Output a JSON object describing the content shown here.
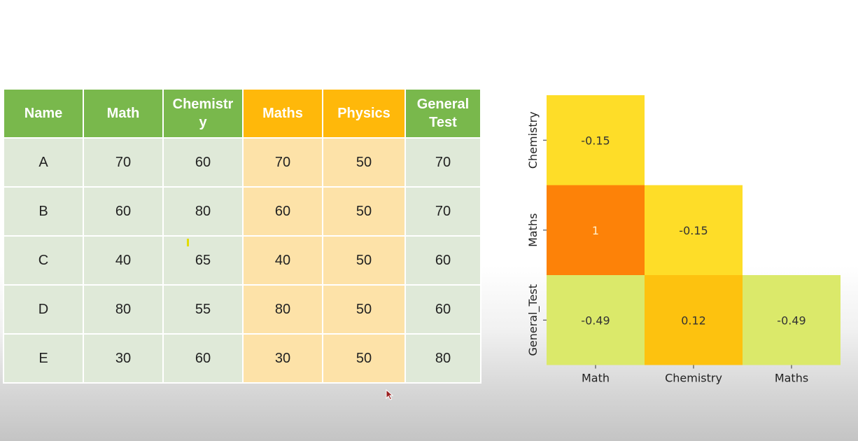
{
  "table": {
    "headers": [
      {
        "label": "Name",
        "style": "green"
      },
      {
        "label": "Math",
        "style": "green"
      },
      {
        "label": "Chemistry",
        "style": "green"
      },
      {
        "label": "Maths",
        "style": "orange"
      },
      {
        "label": "Physics",
        "style": "orange"
      },
      {
        "label": "General Test",
        "style": "green"
      }
    ],
    "rows": [
      [
        "A",
        "70",
        "60",
        "70",
        "50",
        "70"
      ],
      [
        "B",
        "60",
        "80",
        "60",
        "50",
        "70"
      ],
      [
        "C",
        "40",
        "65",
        "40",
        "50",
        "60"
      ],
      [
        "D",
        "80",
        "55",
        "80",
        "50",
        "60"
      ],
      [
        "E",
        "30",
        "60",
        "30",
        "50",
        "80"
      ]
    ],
    "colors": {
      "header_green": "#79b84c",
      "header_orange": "#ffb80a",
      "cell_green": "#dfe9d8",
      "cell_orange": "#fde2a8"
    }
  },
  "chart_data": {
    "type": "heatmap",
    "title": "",
    "xlabel": "",
    "ylabel": "",
    "x_categories": [
      "Math",
      "Chemistry",
      "Maths"
    ],
    "y_categories": [
      "Chemistry",
      "Maths",
      "General_Test"
    ],
    "mask": "upper-triangle (lower triangle shown)",
    "colormap": "Wistia",
    "grid": false,
    "cells": [
      {
        "row": "Chemistry",
        "col": "Math",
        "value": -0.15,
        "label": "-0.15"
      },
      {
        "row": "Maths",
        "col": "Math",
        "value": 1,
        "label": "1"
      },
      {
        "row": "Maths",
        "col": "Chemistry",
        "value": -0.15,
        "label": "-0.15"
      },
      {
        "row": "General_Test",
        "col": "Math",
        "value": -0.49,
        "label": "-0.49"
      },
      {
        "row": "General_Test",
        "col": "Chemistry",
        "value": 0.12,
        "label": "0.12"
      },
      {
        "row": "General_Test",
        "col": "Maths",
        "value": -0.49,
        "label": "-0.49"
      }
    ],
    "cell_colors": {
      "-0.49": "#dbe96a",
      "-0.15": "#fedd28",
      "0.12": "#fdc20f",
      "1": "#fd8208"
    }
  }
}
